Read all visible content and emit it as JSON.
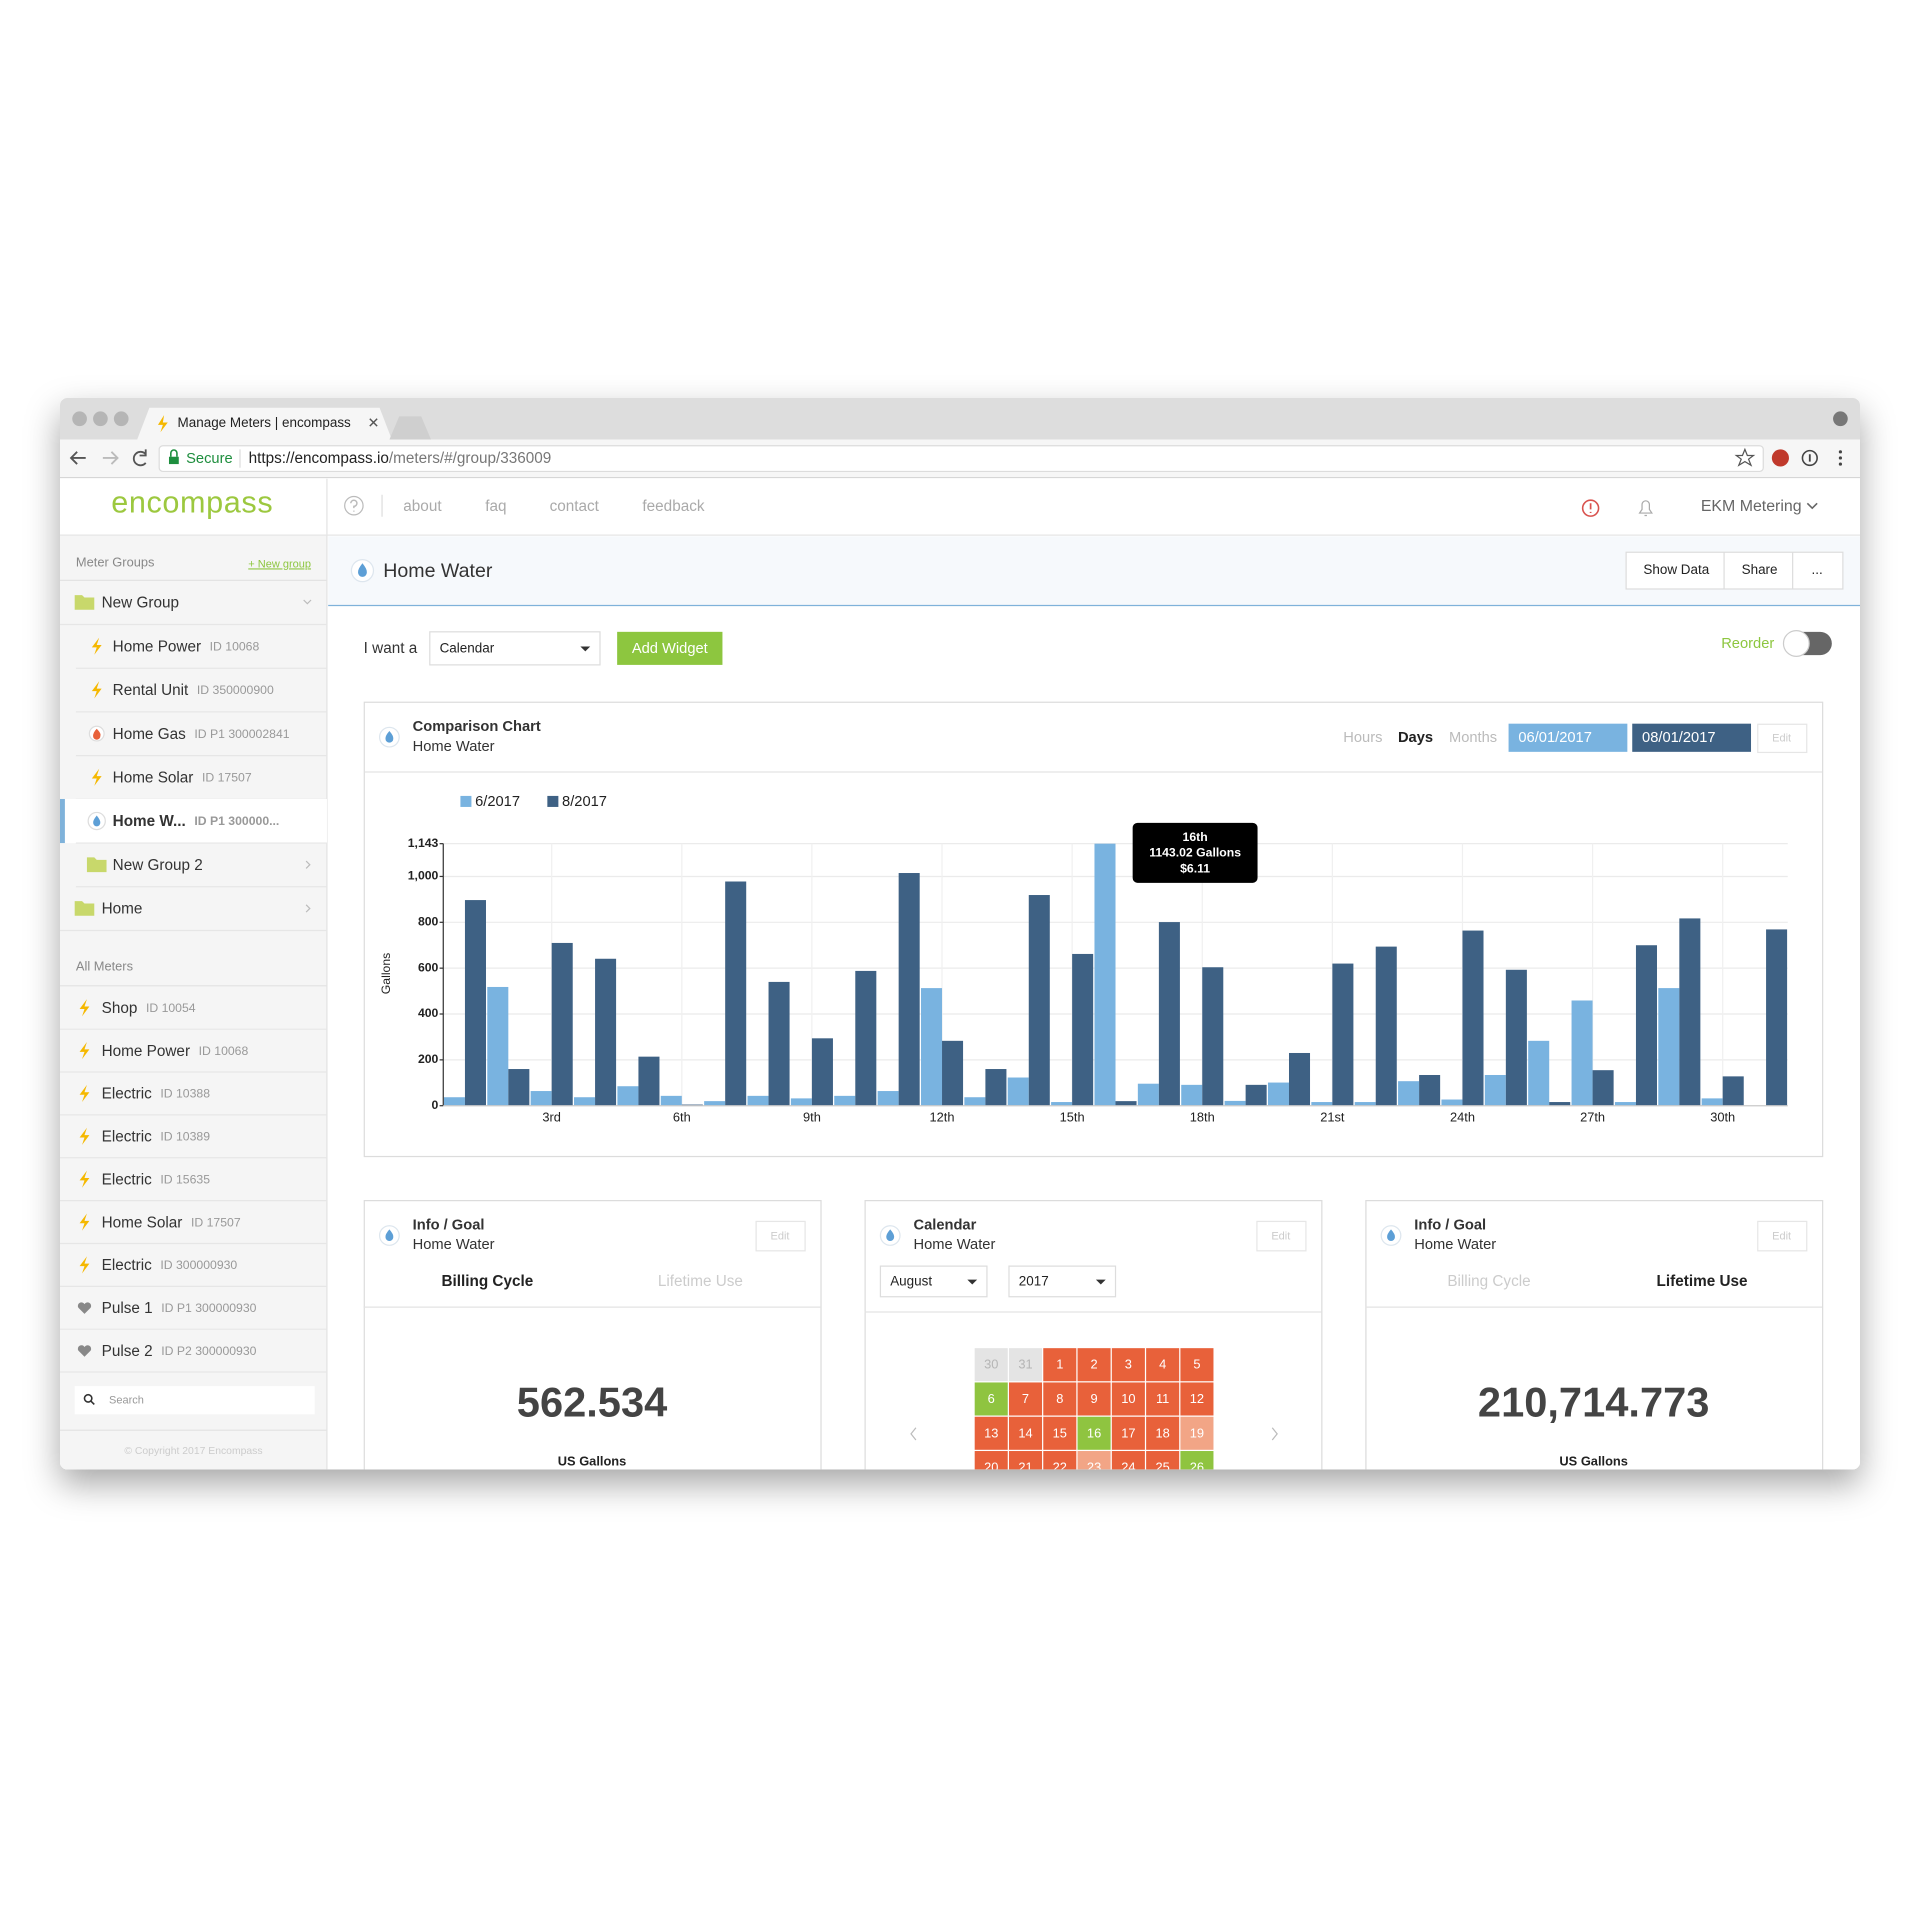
{
  "browser": {
    "tab_title": "Manage Meters | encompass",
    "secure": "Secure",
    "url_host": "https://encompass.io",
    "url_path": "/meters/#/group/336009"
  },
  "nav": {
    "logo": "encompass",
    "links": [
      "about",
      "faq",
      "contact",
      "feedback"
    ],
    "account": "EKM Metering"
  },
  "sidebar": {
    "groups_label": "Meter Groups",
    "new_group": "+ New group",
    "tree": [
      {
        "label": "New Group",
        "kind": "folder",
        "level": 0,
        "open": true
      },
      {
        "label": "Home Power",
        "id": "ID 10068",
        "kind": "power",
        "level": 1
      },
      {
        "label": "Rental Unit",
        "id": "ID 350000900",
        "kind": "power",
        "level": 1
      },
      {
        "label": "Home Gas",
        "id": "ID P1 300002841",
        "kind": "gas",
        "level": 1
      },
      {
        "label": "Home Solar",
        "id": "ID 17507",
        "kind": "power",
        "level": 1
      },
      {
        "label": "Home W...",
        "id": "ID P1 300000...",
        "kind": "water",
        "level": 1,
        "selected": true
      },
      {
        "label": "New Group 2",
        "kind": "folder",
        "level": 1,
        "open": false
      },
      {
        "label": "Home",
        "kind": "folder",
        "level": 0,
        "open": false
      }
    ],
    "all_meters_label": "All Meters",
    "all_meters": [
      {
        "label": "Shop",
        "id": "ID 10054",
        "kind": "power"
      },
      {
        "label": "Home Power",
        "id": "ID 10068",
        "kind": "power"
      },
      {
        "label": "Electric",
        "id": "ID 10388",
        "kind": "power"
      },
      {
        "label": "Electric",
        "id": "ID 10389",
        "kind": "power"
      },
      {
        "label": "Electric",
        "id": "ID 15635",
        "kind": "power"
      },
      {
        "label": "Home Solar",
        "id": "ID 17507",
        "kind": "power"
      },
      {
        "label": "Electric",
        "id": "ID 300000930",
        "kind": "power"
      },
      {
        "label": "Pulse 1",
        "id": "ID P1 300000930",
        "kind": "pulse"
      },
      {
        "label": "Pulse 2",
        "id": "ID P2 300000930",
        "kind": "pulse"
      }
    ],
    "search": "Search",
    "copyright": "© Copyright 2017 Encompass"
  },
  "header": {
    "title": "Home Water",
    "buttons": [
      "Show Data",
      "Share",
      "..."
    ]
  },
  "toolbar": {
    "prompt": "I want a",
    "widget_type": "Calendar",
    "add": "Add Widget",
    "reorder": "Reorder"
  },
  "comparison_widget": {
    "title": "Comparison Chart",
    "subtitle": "Home Water",
    "ranges": [
      "Hours",
      "Days",
      "Months"
    ],
    "active_range": 1,
    "dates": [
      "06/01/2017",
      "08/01/2017"
    ],
    "edit": "Edit"
  },
  "chart_data": {
    "type": "bar",
    "y_label": "Gallons",
    "categories": [
      null,
      null,
      "3rd",
      null,
      null,
      "6th",
      null,
      null,
      "9th",
      null,
      null,
      "12th",
      null,
      null,
      "15th",
      null,
      null,
      "18th",
      null,
      null,
      "21st",
      null,
      null,
      "24th",
      null,
      null,
      "27th",
      null,
      null,
      "30th",
      null
    ],
    "series": [
      {
        "name": "6/2017",
        "color": "#79b3e0",
        "values": [
          37,
          518,
          64,
          37,
          85,
          43,
          20,
          43,
          32,
          43,
          64,
          513,
          37,
          123,
          16,
          1143.02,
          96,
          91,
          21,
          101,
          16,
          16,
          107,
          27,
          134,
          283,
          459,
          16,
          513,
          32,
          null
        ]
      },
      {
        "name": "8/2017",
        "color": "#3e6184",
        "values": [
          897,
          160,
          710,
          641,
          214,
          5,
          978,
          540,
          294,
          588,
          1015,
          283,
          160,
          919,
          662,
          20,
          801,
          604,
          91,
          230,
          620,
          694,
          134,
          764,
          593,
          16,
          155,
          700,
          817,
          128,
          769
        ]
      }
    ],
    "ylim": [
      0,
      1143
    ],
    "yticks": [
      0,
      200,
      400,
      600,
      800,
      {
        "value": 1000,
        "label": "1,000"
      },
      {
        "value": 1143,
        "label": "1,143"
      }
    ],
    "grid": true,
    "tooltip": {
      "title": "16th",
      "lines": [
        "1143.02 Gallons",
        "$6.11"
      ]
    }
  },
  "widgets": [
    {
      "title": "Info / Goal",
      "subtitle": "Home Water",
      "edit": "Edit",
      "tabs": [
        "Billing Cycle",
        "Lifetime Use"
      ],
      "active_tab": 0,
      "value": "562.534",
      "unit": "US Gallons"
    },
    {
      "title": "Calendar",
      "subtitle": "Home Water",
      "edit": "Edit",
      "month": "August",
      "year": "2017",
      "colors": {
        "other": "#e4e4e4",
        "over": "#e8613a",
        "near": "#f2a586",
        "under": "#8fc440"
      },
      "days": [
        {
          "day": "30",
          "status": "other"
        },
        {
          "day": "31",
          "status": "other"
        },
        {
          "day": "1",
          "status": "over"
        },
        {
          "day": "2",
          "status": "over"
        },
        {
          "day": "3",
          "status": "over"
        },
        {
          "day": "4",
          "status": "over"
        },
        {
          "day": "5",
          "status": "over"
        },
        {
          "day": "6",
          "status": "under"
        },
        {
          "day": "7",
          "status": "over"
        },
        {
          "day": "8",
          "status": "over"
        },
        {
          "day": "9",
          "status": "over"
        },
        {
          "day": "10",
          "status": "over"
        },
        {
          "day": "11",
          "status": "over"
        },
        {
          "day": "12",
          "status": "over"
        },
        {
          "day": "13",
          "status": "over"
        },
        {
          "day": "14",
          "status": "over"
        },
        {
          "day": "15",
          "status": "over"
        },
        {
          "day": "16",
          "status": "under"
        },
        {
          "day": "17",
          "status": "over"
        },
        {
          "day": "18",
          "status": "over"
        },
        {
          "day": "19",
          "status": "near"
        },
        {
          "day": "20",
          "status": "over"
        },
        {
          "day": "21",
          "status": "over"
        },
        {
          "day": "22",
          "status": "over"
        },
        {
          "day": "23",
          "status": "near"
        },
        {
          "day": "24",
          "status": "over"
        },
        {
          "day": "25",
          "status": "over"
        },
        {
          "day": "26",
          "status": "under"
        }
      ]
    },
    {
      "title": "Info / Goal",
      "subtitle": "Home Water",
      "edit": "Edit",
      "tabs": [
        "Billing Cycle",
        "Lifetime Use"
      ],
      "active_tab": 1,
      "value": "210,714.773",
      "unit": "US Gallons"
    }
  ]
}
